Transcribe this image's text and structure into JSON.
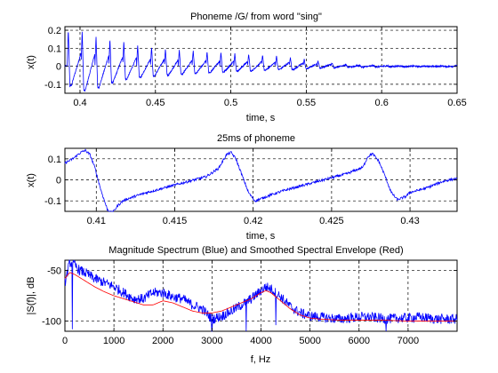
{
  "colors": {
    "blue": "#0000ff",
    "red": "#ff0000"
  },
  "chart_data": [
    {
      "type": "line",
      "title": "Phoneme /G/ from word \"sing\"",
      "xlabel": "time, s",
      "ylabel": "x(t)",
      "xlim": [
        0.39,
        0.65
      ],
      "ylim": [
        -0.15,
        0.22
      ],
      "xticks": [
        0.4,
        0.45,
        0.5,
        0.55,
        0.6,
        0.65
      ],
      "xtick_labels": [
        "0.4",
        "0.45",
        "0.5",
        "0.55",
        "0.6",
        "0.65"
      ],
      "yticks": [
        -0.1,
        0,
        0.1,
        0.2
      ],
      "ytick_labels": [
        "-0.1",
        "0",
        "0.1",
        "0.2"
      ],
      "grid": true,
      "series": [
        {
          "color": "#0000ff",
          "signal": {
            "kind": "pulse_train",
            "start": 0.39,
            "end": 0.65,
            "period": 0.0092,
            "onsets": [
              0.3915,
              0.4007,
              0.4099,
              0.4191,
              0.4283,
              0.4375,
              0.4467,
              0.4559,
              0.4651,
              0.4743,
              0.4835,
              0.4927,
              0.5019,
              0.5111,
              0.5203,
              0.5295,
              0.5387,
              0.5479,
              0.5571,
              0.5663,
              0.5755,
              0.5847,
              0.5939,
              0.6031,
              0.6123,
              0.6215,
              0.6307,
              0.6399
            ],
            "peaks": [
              0.21,
              0.2,
              0.17,
              0.15,
              0.14,
              0.12,
              0.11,
              0.1,
              0.095,
              0.09,
              0.085,
              0.08,
              0.075,
              0.07,
              0.065,
              0.06,
              0.05,
              0.04,
              0.03,
              0.02,
              0.012,
              0.008,
              0.005,
              0.004,
              0.003,
              0.002,
              0.002,
              0.002
            ],
            "troughs": [
              -0.12,
              -0.15,
              -0.13,
              -0.1,
              -0.08,
              -0.07,
              -0.06,
              -0.055,
              -0.05,
              -0.045,
              -0.04,
              -0.035,
              -0.03,
              -0.03,
              -0.025,
              -0.02,
              -0.02,
              -0.015,
              -0.01,
              -0.008,
              -0.006,
              -0.005,
              -0.004,
              -0.003,
              -0.003,
              -0.002,
              -0.002,
              -0.002
            ],
            "noise": 0.004
          }
        }
      ]
    },
    {
      "type": "line",
      "title": "25ms of phoneme",
      "xlabel": "time, s",
      "ylabel": "x(t)",
      "xlim": [
        0.408,
        0.433
      ],
      "ylim": [
        -0.15,
        0.15
      ],
      "xticks": [
        0.41,
        0.415,
        0.42,
        0.425,
        0.43
      ],
      "xtick_labels": [
        "0.41",
        "0.415",
        "0.42",
        "0.425",
        "0.43"
      ],
      "yticks": [
        -0.1,
        0,
        0.1
      ],
      "ytick_labels": [
        "-0.1",
        "0",
        "0.1"
      ],
      "grid": true,
      "series": [
        {
          "color": "#0000ff",
          "points": [
            [
              0.408,
              0.08
            ],
            [
              0.4085,
              0.1
            ],
            [
              0.409,
              0.13
            ],
            [
              0.4093,
              0.14
            ],
            [
              0.4096,
              0.12
            ],
            [
              0.4099,
              0.06
            ],
            [
              0.4103,
              -0.05
            ],
            [
              0.4107,
              -0.14
            ],
            [
              0.411,
              -0.16
            ],
            [
              0.4114,
              -0.12
            ],
            [
              0.4117,
              -0.1
            ],
            [
              0.412,
              -0.09
            ],
            [
              0.413,
              -0.065
            ],
            [
              0.414,
              -0.045
            ],
            [
              0.415,
              -0.025
            ],
            [
              0.416,
              -0.005
            ],
            [
              0.417,
              0.015
            ],
            [
              0.4178,
              0.055
            ],
            [
              0.4183,
              0.12
            ],
            [
              0.4186,
              0.13
            ],
            [
              0.4189,
              0.1
            ],
            [
              0.4193,
              0.02
            ],
            [
              0.4197,
              -0.06
            ],
            [
              0.4201,
              -0.1
            ],
            [
              0.4205,
              -0.09
            ],
            [
              0.421,
              -0.075
            ],
            [
              0.422,
              -0.05
            ],
            [
              0.423,
              -0.03
            ],
            [
              0.424,
              -0.01
            ],
            [
              0.425,
              0.01
            ],
            [
              0.426,
              0.03
            ],
            [
              0.427,
              0.06
            ],
            [
              0.4273,
              0.11
            ],
            [
              0.4276,
              0.125
            ],
            [
              0.428,
              0.09
            ],
            [
              0.4284,
              0.02
            ],
            [
              0.4288,
              -0.06
            ],
            [
              0.4292,
              -0.095
            ],
            [
              0.4297,
              -0.08
            ],
            [
              0.43,
              -0.06
            ],
            [
              0.431,
              -0.04
            ],
            [
              0.432,
              -0.01
            ],
            [
              0.4325,
              0.0
            ],
            [
              0.433,
              0.005
            ]
          ],
          "noise": 0.006
        }
      ]
    },
    {
      "type": "line",
      "title": "Magnitude Spectrum (Blue) and Smoothed Spectral Envelope (Red)",
      "xlabel": "f, Hz",
      "ylabel": "|S(f)|, dB",
      "xlim": [
        0,
        8000
      ],
      "ylim": [
        -110,
        -40
      ],
      "xticks": [
        0,
        1000,
        2000,
        3000,
        4000,
        5000,
        6000,
        7000
      ],
      "xtick_labels": [
        "0",
        "1000",
        "2000",
        "3000",
        "4000",
        "5000",
        "6000",
        "7000"
      ],
      "yticks": [
        -100,
        -50
      ],
      "ytick_labels": [
        "-100",
        "-50"
      ],
      "grid": true,
      "series": [
        {
          "name": "Magnitude Spectrum",
          "color": "#0000ff",
          "points": [
            [
              0,
              -62
            ],
            [
              100,
              -42
            ],
            [
              200,
              -45
            ],
            [
              300,
              -50
            ],
            [
              400,
              -52
            ],
            [
              600,
              -58
            ],
            [
              800,
              -62
            ],
            [
              1000,
              -66
            ],
            [
              1200,
              -72
            ],
            [
              1400,
              -78
            ],
            [
              1600,
              -78
            ],
            [
              1800,
              -72
            ],
            [
              2000,
              -72
            ],
            [
              2200,
              -76
            ],
            [
              2400,
              -78
            ],
            [
              2600,
              -84
            ],
            [
              2800,
              -88
            ],
            [
              3000,
              -98
            ],
            [
              3200,
              -95
            ],
            [
              3400,
              -90
            ],
            [
              3600,
              -84
            ],
            [
              3800,
              -78
            ],
            [
              4000,
              -70
            ],
            [
              4100,
              -66
            ],
            [
              4200,
              -68
            ],
            [
              4400,
              -76
            ],
            [
              4600,
              -86
            ],
            [
              4800,
              -92
            ],
            [
              5000,
              -95
            ],
            [
              5200,
              -96
            ],
            [
              5400,
              -97
            ],
            [
              5600,
              -98
            ],
            [
              5800,
              -97
            ],
            [
              6000,
              -96
            ],
            [
              6200,
              -96
            ],
            [
              6400,
              -97
            ],
            [
              6600,
              -98
            ],
            [
              6800,
              -97
            ],
            [
              7000,
              -97
            ],
            [
              7200,
              -96
            ],
            [
              7400,
              -97
            ],
            [
              7600,
              -98
            ],
            [
              7800,
              -98
            ],
            [
              8000,
              -98
            ]
          ],
          "noise": 5,
          "dips": [
            [
              150,
              -108
            ],
            [
              3000,
              -112
            ],
            [
              3700,
              -110
            ],
            [
              4300,
              -104
            ],
            [
              6550,
              -112
            ]
          ]
        },
        {
          "name": "Smoothed Spectral Envelope",
          "color": "#ff0000",
          "points": [
            [
              0,
              -58
            ],
            [
              100,
              -52
            ],
            [
              200,
              -54
            ],
            [
              400,
              -60
            ],
            [
              600,
              -66
            ],
            [
              800,
              -71
            ],
            [
              1000,
              -75
            ],
            [
              1200,
              -78
            ],
            [
              1400,
              -81
            ],
            [
              1600,
              -84
            ],
            [
              1800,
              -84
            ],
            [
              2000,
              -80
            ],
            [
              2200,
              -82
            ],
            [
              2400,
              -86
            ],
            [
              2600,
              -90
            ],
            [
              2800,
              -92
            ],
            [
              3000,
              -92
            ],
            [
              3200,
              -90
            ],
            [
              3400,
              -86
            ],
            [
              3600,
              -82
            ],
            [
              3800,
              -78
            ],
            [
              4000,
              -72
            ],
            [
              4100,
              -70
            ],
            [
              4200,
              -72
            ],
            [
              4400,
              -80
            ],
            [
              4600,
              -88
            ],
            [
              4800,
              -94
            ],
            [
              5000,
              -97
            ],
            [
              5200,
              -98
            ],
            [
              5600,
              -99
            ],
            [
              6000,
              -99
            ],
            [
              6500,
              -99
            ],
            [
              7000,
              -100
            ],
            [
              7500,
              -100
            ],
            [
              8000,
              -100
            ]
          ]
        }
      ]
    }
  ]
}
